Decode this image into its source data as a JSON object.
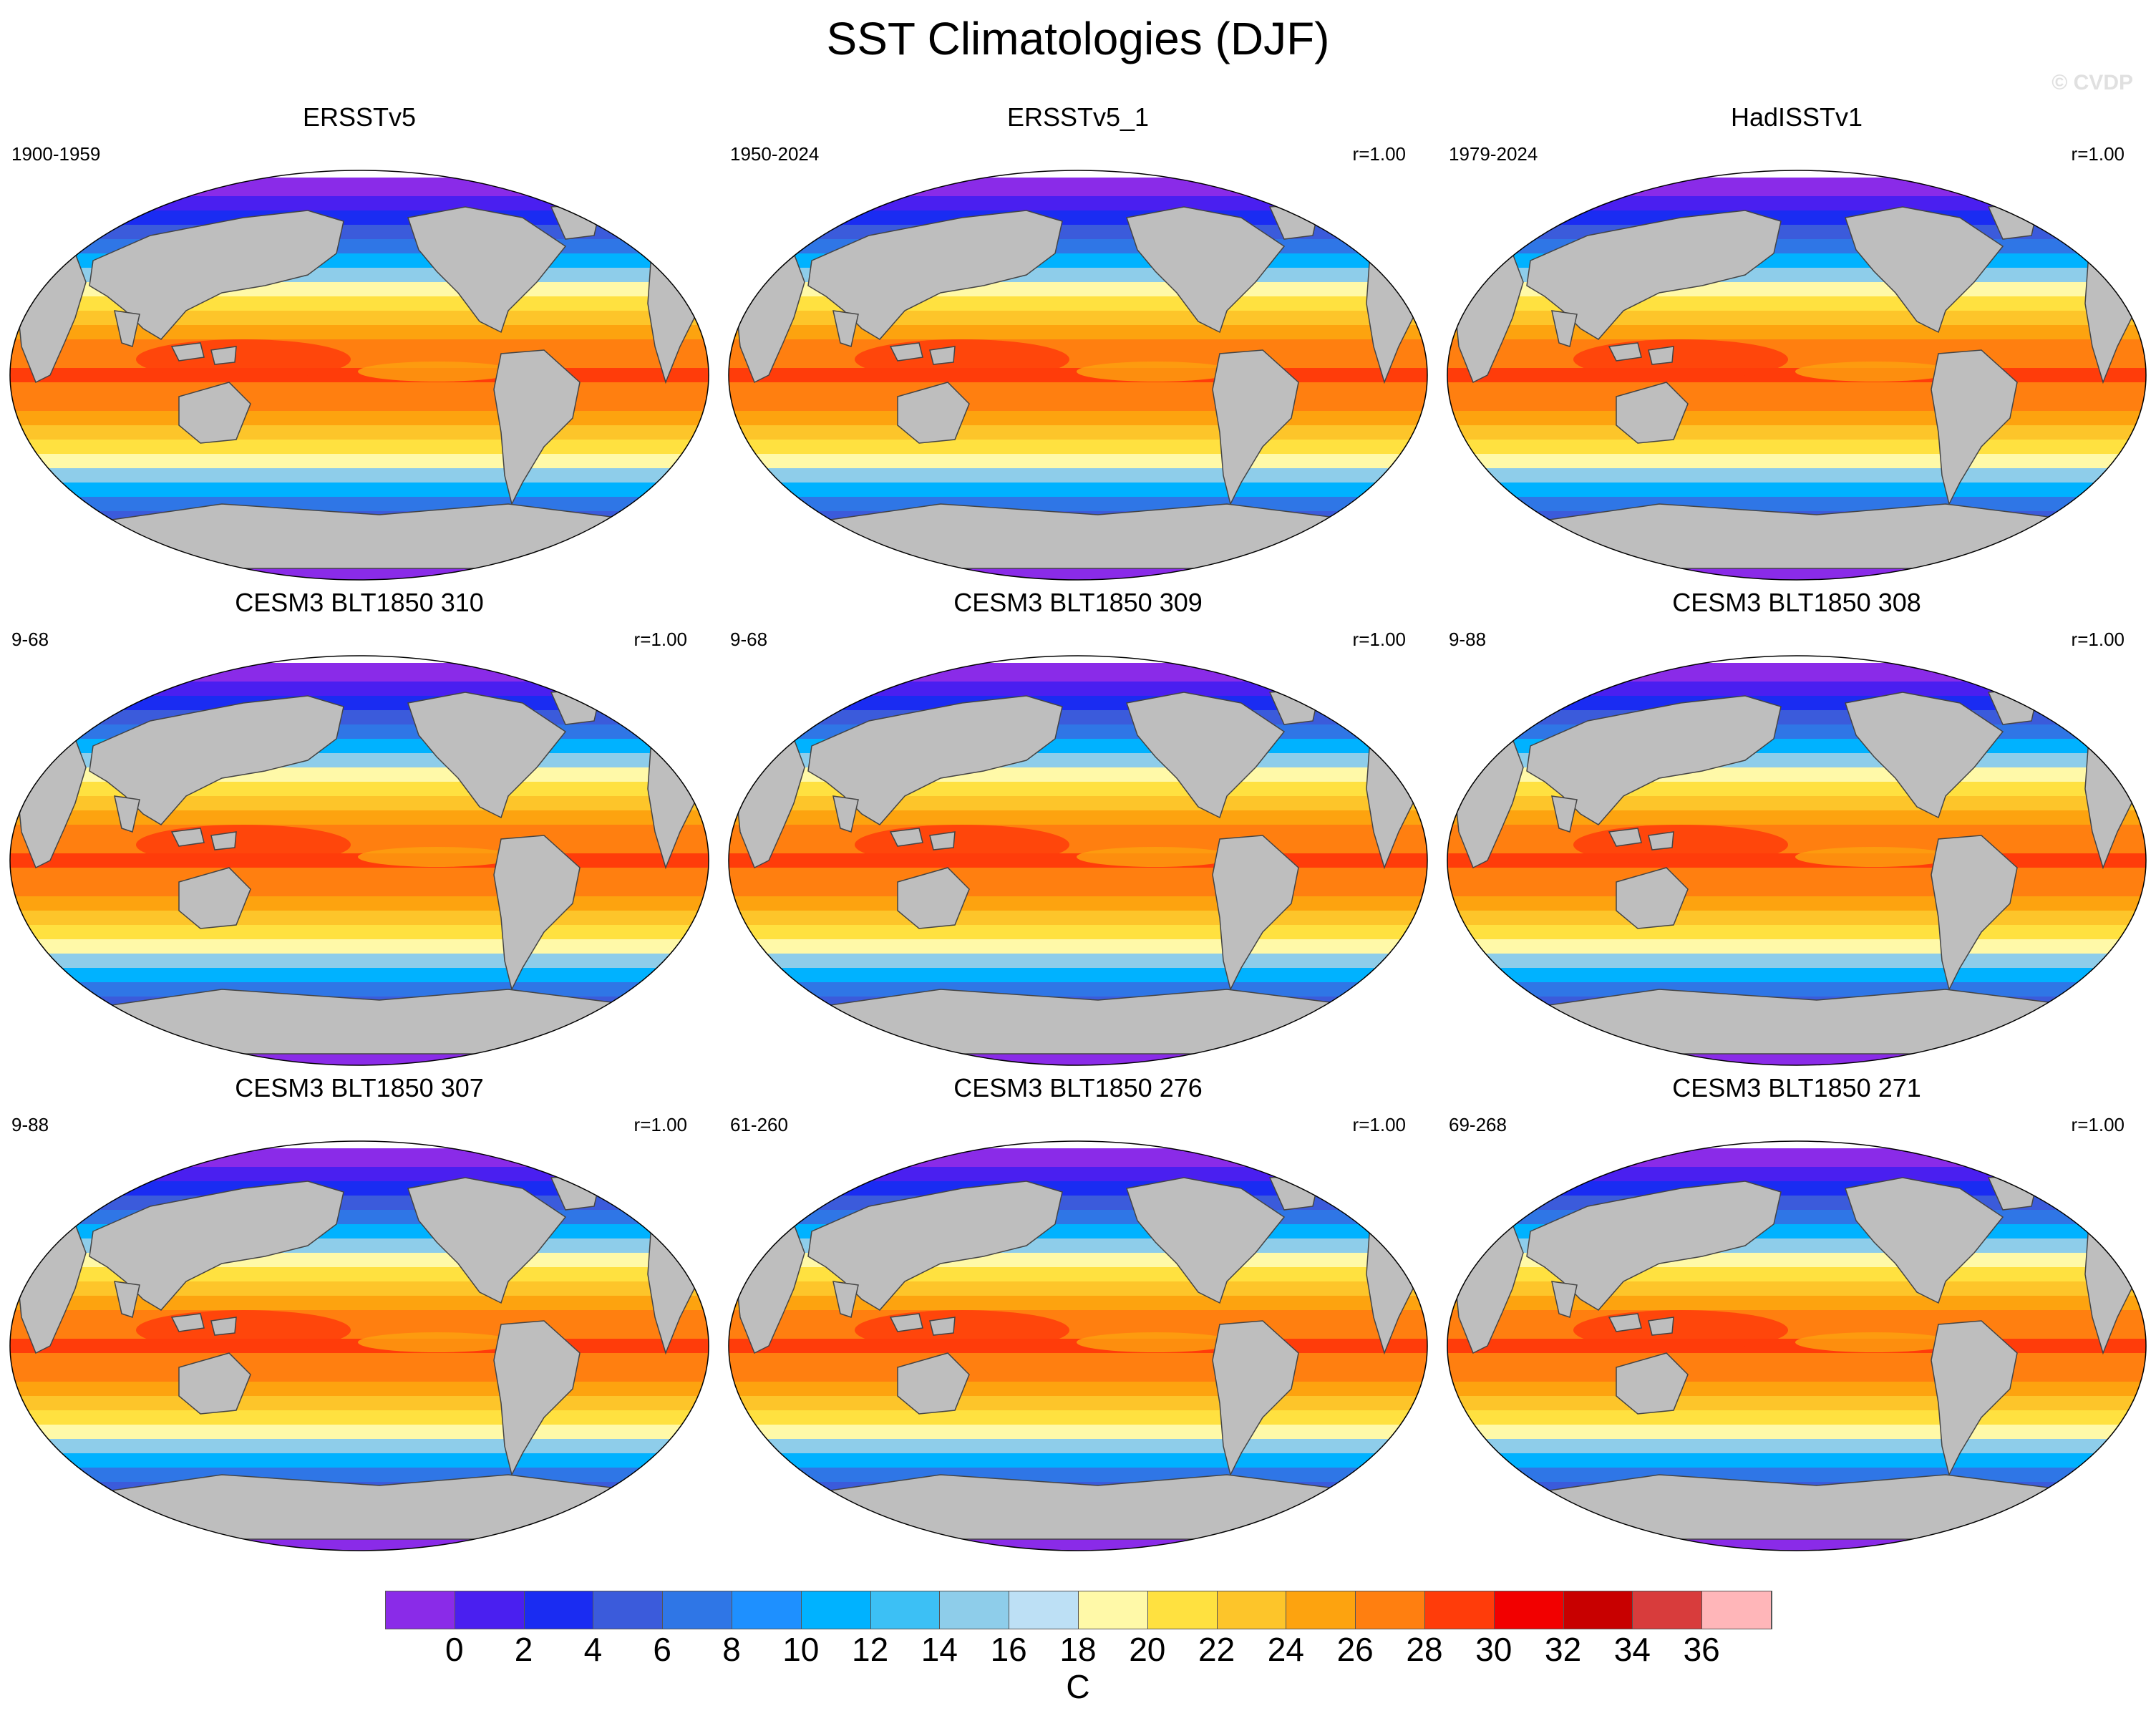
{
  "title": "SST Climatologies (DJF)",
  "watermark": "© CVDP",
  "panels": [
    {
      "title": "ERSSTv5",
      "years": "1900-1959",
      "corr": ""
    },
    {
      "title": "ERSSTv5_1",
      "years": "1950-2024",
      "corr": "r=1.00"
    },
    {
      "title": "HadISSTv1",
      "years": "1979-2024",
      "corr": "r=1.00"
    },
    {
      "title": "CESM3 BLT1850 310",
      "years": "9-68",
      "corr": "r=1.00"
    },
    {
      "title": "CESM3 BLT1850 309",
      "years": "9-68",
      "corr": "r=1.00"
    },
    {
      "title": "CESM3 BLT1850 308",
      "years": "9-88",
      "corr": "r=1.00"
    },
    {
      "title": "CESM3 BLT1850 307",
      "years": "9-88",
      "corr": "r=1.00"
    },
    {
      "title": "CESM3 BLT1850 276",
      "years": "61-260",
      "corr": "r=1.00"
    },
    {
      "title": "CESM3 BLT1850 271",
      "years": "69-268",
      "corr": "r=1.00"
    }
  ],
  "colorbar": {
    "units": "C",
    "labels": [
      "0",
      "2",
      "4",
      "6",
      "8",
      "10",
      "12",
      "14",
      "16",
      "18",
      "20",
      "22",
      "24",
      "26",
      "28",
      "30",
      "32",
      "34",
      "36"
    ],
    "colors": [
      "#8a2be8",
      "#4a1ff0",
      "#1a2cf2",
      "#3b5bdb",
      "#2f76e6",
      "#1e90ff",
      "#00b2ff",
      "#3cc0f5",
      "#8ecdea",
      "#bde0f5",
      "#fff9a8",
      "#ffe140",
      "#fdc52a",
      "#fda30f",
      "#ff7f10",
      "#ff3c0a",
      "#f20000",
      "#c80000",
      "#d83c3c",
      "#ffb6b9"
    ]
  },
  "map_colors": {
    "land": "#bebebe",
    "coast": "#444444",
    "ice": "#ffffff"
  }
}
